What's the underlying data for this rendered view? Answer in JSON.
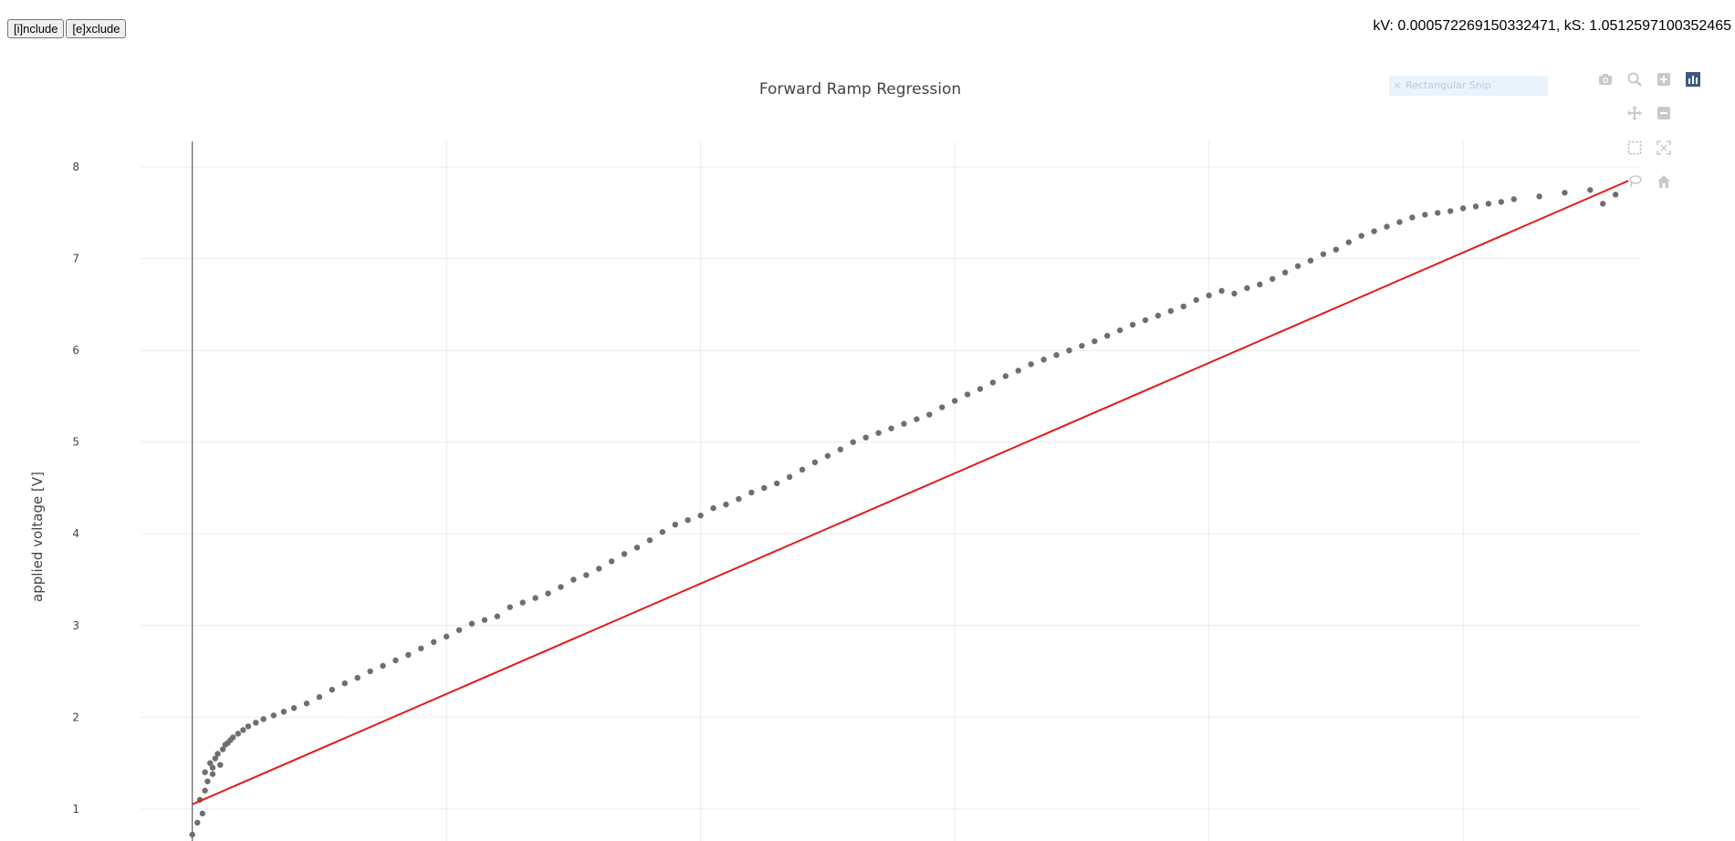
{
  "toolbar": {
    "include_label": "[i]nclude",
    "exclude_label": "[e]xclude"
  },
  "readout": {
    "text": "kV: 0.000572269150332471, kS: 1.0512597100352465"
  },
  "snip": {
    "label": "Rectangular Snip",
    "close_glyph": "×"
  },
  "modebar": {
    "icons": [
      "camera-icon",
      "zoom-icon",
      "zoom-in-icon",
      "bar-chart-icon",
      "pan-icon",
      "zoom-out-icon",
      "box-select-icon",
      "autoscale-icon",
      "lasso-icon",
      "home-icon"
    ]
  },
  "colors": {
    "points": "#6e6e6e",
    "fit_line": "#e31a1c",
    "grid": "#ececec"
  },
  "chart_data": {
    "type": "scatter",
    "title": "Forward Ramp Regression",
    "xlabel": "",
    "ylabel": "applied voltage [V]",
    "ylim": [
      0.65,
      8.28
    ],
    "yticks": [
      1,
      2,
      3,
      4,
      5,
      6,
      7,
      8
    ],
    "xlim": [
      -0.2,
      5.7
    ],
    "grid": true,
    "series": [
      {
        "mode": "markers",
        "x": [
          0.0,
          0.02,
          0.04,
          0.03,
          0.05,
          0.06,
          0.05,
          0.07,
          0.08,
          0.09,
          0.08,
          0.1,
          0.12,
          0.11,
          0.13,
          0.15,
          0.14,
          0.16,
          0.18,
          0.2,
          0.22,
          0.25,
          0.28,
          0.32,
          0.36,
          0.4,
          0.45,
          0.5,
          0.55,
          0.6,
          0.65,
          0.7,
          0.75,
          0.8,
          0.85,
          0.9,
          0.95,
          1.0,
          1.05,
          1.1,
          1.15,
          1.2,
          1.25,
          1.3,
          1.35,
          1.4,
          1.45,
          1.5,
          1.55,
          1.6,
          1.65,
          1.7,
          1.75,
          1.8,
          1.85,
          1.9,
          1.95,
          2.0,
          2.05,
          2.1,
          2.15,
          2.2,
          2.25,
          2.3,
          2.35,
          2.4,
          2.45,
          2.5,
          2.55,
          2.6,
          2.65,
          2.7,
          2.75,
          2.8,
          2.85,
          2.9,
          2.95,
          3.0,
          3.05,
          3.1,
          3.15,
          3.2,
          3.25,
          3.3,
          3.35,
          3.4,
          3.45,
          3.5,
          3.55,
          3.6,
          3.65,
          3.7,
          3.75,
          3.8,
          3.85,
          3.9,
          3.95,
          4.0,
          4.05,
          4.1,
          4.15,
          4.2,
          4.25,
          4.3,
          4.35,
          4.4,
          4.45,
          4.5,
          4.55,
          4.6,
          4.65,
          4.7,
          4.75,
          4.8,
          4.85,
          4.9,
          4.95,
          5.0,
          5.05,
          5.1,
          5.15,
          5.2,
          5.3,
          5.4,
          5.5,
          5.55,
          5.6
        ],
        "y": [
          0.72,
          0.85,
          0.95,
          1.1,
          1.2,
          1.3,
          1.4,
          1.5,
          1.45,
          1.55,
          1.38,
          1.6,
          1.65,
          1.48,
          1.7,
          1.75,
          1.72,
          1.78,
          1.82,
          1.86,
          1.9,
          1.94,
          1.98,
          2.02,
          2.06,
          2.1,
          2.15,
          2.22,
          2.3,
          2.37,
          2.43,
          2.5,
          2.56,
          2.62,
          2.68,
          2.75,
          2.82,
          2.88,
          2.95,
          3.02,
          3.06,
          3.1,
          3.2,
          3.25,
          3.3,
          3.35,
          3.42,
          3.5,
          3.55,
          3.62,
          3.7,
          3.78,
          3.85,
          3.93,
          4.02,
          4.1,
          4.15,
          4.2,
          4.28,
          4.32,
          4.38,
          4.45,
          4.5,
          4.55,
          4.62,
          4.7,
          4.78,
          4.85,
          4.92,
          5.0,
          5.05,
          5.1,
          5.15,
          5.2,
          5.25,
          5.3,
          5.38,
          5.45,
          5.52,
          5.58,
          5.65,
          5.72,
          5.78,
          5.85,
          5.9,
          5.95,
          6.0,
          6.05,
          6.1,
          6.16,
          6.22,
          6.28,
          6.33,
          6.38,
          6.43,
          6.48,
          6.55,
          6.6,
          6.65,
          6.62,
          6.68,
          6.72,
          6.78,
          6.85,
          6.92,
          6.98,
          7.05,
          7.1,
          7.18,
          7.25,
          7.3,
          7.35,
          7.4,
          7.45,
          7.48,
          7.5,
          7.52,
          7.55,
          7.57,
          7.6,
          7.62,
          7.65,
          7.68,
          7.72,
          7.75,
          7.6,
          7.7
        ]
      },
      {
        "mode": "line",
        "x": [
          0.0,
          5.65
        ],
        "y": [
          1.05,
          7.85
        ]
      }
    ]
  }
}
